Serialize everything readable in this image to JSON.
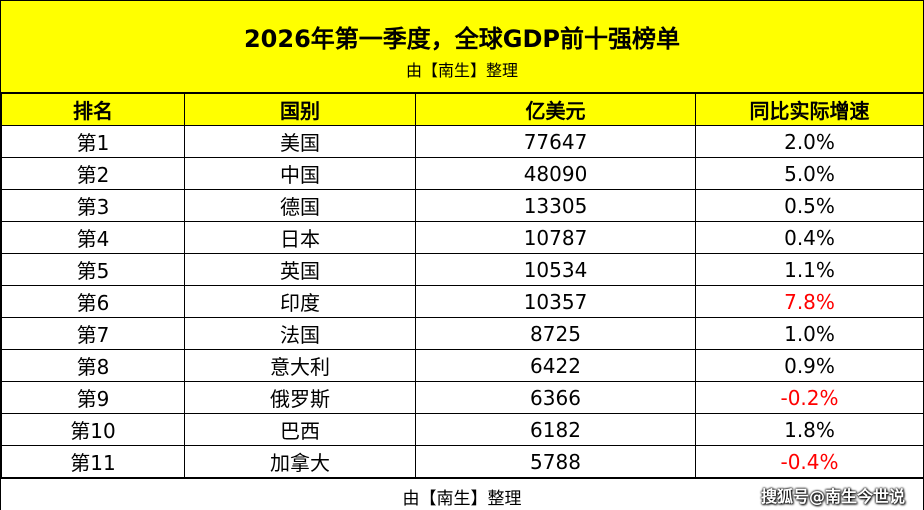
{
  "header": {
    "title": "2026年第一季度，全球GDP前十强榜单",
    "subtitle": "由【南生】整理"
  },
  "table": {
    "columns": [
      "排名",
      "国别",
      "亿美元",
      "同比实际增速"
    ],
    "rows": [
      {
        "rank": "第1",
        "country": "美国",
        "gdp": "77647",
        "growth": "2.0%",
        "highlight": false
      },
      {
        "rank": "第2",
        "country": "中国",
        "gdp": "48090",
        "growth": "5.0%",
        "highlight": false
      },
      {
        "rank": "第3",
        "country": "德国",
        "gdp": "13305",
        "growth": "0.5%",
        "highlight": false
      },
      {
        "rank": "第4",
        "country": "日本",
        "gdp": "10787",
        "growth": "0.4%",
        "highlight": false
      },
      {
        "rank": "第5",
        "country": "英国",
        "gdp": "10534",
        "growth": "1.1%",
        "highlight": false
      },
      {
        "rank": "第6",
        "country": "印度",
        "gdp": "10357",
        "growth": "7.8%",
        "highlight": true
      },
      {
        "rank": "第7",
        "country": "法国",
        "gdp": "8725",
        "growth": "1.0%",
        "highlight": false
      },
      {
        "rank": "第8",
        "country": "意大利",
        "gdp": "6422",
        "growth": "0.9%",
        "highlight": false
      },
      {
        "rank": "第9",
        "country": "俄罗斯",
        "gdp": "6366",
        "growth": "-0.2%",
        "highlight": true
      },
      {
        "rank": "第10",
        "country": "巴西",
        "gdp": "6182",
        "growth": "1.8%",
        "highlight": false
      },
      {
        "rank": "第11",
        "country": "加拿大",
        "gdp": "5788",
        "growth": "-0.4%",
        "highlight": true
      }
    ]
  },
  "footer": {
    "text": "由【南生】整理",
    "watermark": "搜狐号@南生今世说"
  },
  "colors": {
    "header_bg": "#ffff00",
    "highlight_text": "#ff0000"
  }
}
